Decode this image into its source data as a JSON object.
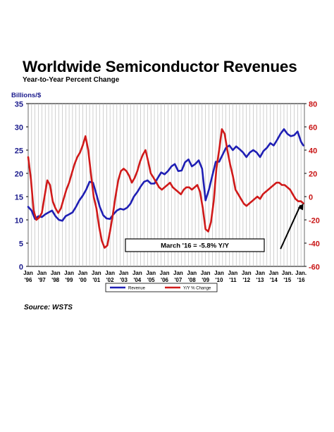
{
  "header": {
    "title": "Worldwide Semiconductor Revenues",
    "subtitle": "Year-to-Year Percent Change"
  },
  "footer": {
    "source": "Source: WSTS"
  },
  "chart_data": {
    "type": "line",
    "y_left_label": "Billions/$",
    "y_left_range": [
      0,
      35
    ],
    "y_left_ticks": [
      "0",
      "5",
      "10",
      "15",
      "20",
      "25",
      "30",
      "35"
    ],
    "y_right_range": [
      -60,
      80
    ],
    "y_right_ticks": [
      "-60",
      "-40",
      "-20",
      "0",
      "20",
      "40",
      "60",
      "80"
    ],
    "x_range": [
      1996,
      2016.25
    ],
    "x_ticks": [
      {
        "x": 1996,
        "top": "Jan",
        "bottom": "'96"
      },
      {
        "x": 1997,
        "top": "Jan",
        "bottom": "'97"
      },
      {
        "x": 1998,
        "top": "Jan",
        "bottom": "'98"
      },
      {
        "x": 1999,
        "top": "Jan",
        "bottom": "'99"
      },
      {
        "x": 2000,
        "top": "Jan",
        "bottom": "'00"
      },
      {
        "x": 2001,
        "top": "Jan",
        "bottom": "'01"
      },
      {
        "x": 2002,
        "top": "Jan",
        "bottom": "'02"
      },
      {
        "x": 2003,
        "top": "Jan",
        "bottom": "'03"
      },
      {
        "x": 2004,
        "top": "Jan",
        "bottom": "'04"
      },
      {
        "x": 2005,
        "top": "Jan",
        "bottom": "'05"
      },
      {
        "x": 2006,
        "top": "Jan",
        "bottom": "'06"
      },
      {
        "x": 2007,
        "top": "Jan",
        "bottom": "'07"
      },
      {
        "x": 2008,
        "top": "Jan",
        "bottom": "'08"
      },
      {
        "x": 2009,
        "top": "Jan",
        "bottom": "'09"
      },
      {
        "x": 2010,
        "top": "Jan",
        "bottom": "'10"
      },
      {
        "x": 2011,
        "top": "Jan",
        "bottom": "'11"
      },
      {
        "x": 2012,
        "top": "Jan",
        "bottom": "'12"
      },
      {
        "x": 2013,
        "top": "Jan",
        "bottom": "'13"
      },
      {
        "x": 2014,
        "top": "Jan",
        "bottom": "'14"
      },
      {
        "x": 2015,
        "top": "Jan.",
        "bottom": "'15"
      },
      {
        "x": 2016,
        "top": "Jan.",
        "bottom": "'16"
      }
    ],
    "grid": "vertical",
    "legend_position": "bottom",
    "series": [
      {
        "name": "Revenue",
        "axis": "left",
        "color": "#1f1fb4",
        "points": [
          [
            1996.0,
            12.8
          ],
          [
            1996.25,
            12.0
          ],
          [
            1996.5,
            10.2
          ],
          [
            1996.75,
            10.8
          ],
          [
            1997.0,
            10.6
          ],
          [
            1997.25,
            11.2
          ],
          [
            1997.5,
            11.6
          ],
          [
            1997.75,
            12.0
          ],
          [
            1998.0,
            10.8
          ],
          [
            1998.25,
            10.0
          ],
          [
            1998.5,
            9.8
          ],
          [
            1998.75,
            10.8
          ],
          [
            1999.0,
            11.2
          ],
          [
            1999.25,
            11.6
          ],
          [
            1999.5,
            12.8
          ],
          [
            1999.75,
            14.2
          ],
          [
            2000.0,
            15.2
          ],
          [
            2000.25,
            16.5
          ],
          [
            2000.5,
            18.2
          ],
          [
            2000.75,
            18.0
          ],
          [
            2001.0,
            15.5
          ],
          [
            2001.25,
            12.8
          ],
          [
            2001.5,
            11.0
          ],
          [
            2001.75,
            10.3
          ],
          [
            2002.0,
            10.2
          ],
          [
            2002.25,
            11.2
          ],
          [
            2002.5,
            12.0
          ],
          [
            2002.75,
            12.4
          ],
          [
            2003.0,
            12.2
          ],
          [
            2003.25,
            12.6
          ],
          [
            2003.5,
            13.5
          ],
          [
            2003.75,
            15.0
          ],
          [
            2004.0,
            16.0
          ],
          [
            2004.25,
            17.2
          ],
          [
            2004.5,
            18.2
          ],
          [
            2004.75,
            18.5
          ],
          [
            2005.0,
            17.8
          ],
          [
            2005.25,
            17.8
          ],
          [
            2005.5,
            19.0
          ],
          [
            2005.75,
            20.2
          ],
          [
            2006.0,
            19.8
          ],
          [
            2006.25,
            20.5
          ],
          [
            2006.5,
            21.5
          ],
          [
            2006.75,
            22.0
          ],
          [
            2007.0,
            20.5
          ],
          [
            2007.25,
            20.6
          ],
          [
            2007.5,
            22.4
          ],
          [
            2007.75,
            23.0
          ],
          [
            2008.0,
            21.5
          ],
          [
            2008.25,
            22.0
          ],
          [
            2008.5,
            22.8
          ],
          [
            2008.75,
            21.0
          ],
          [
            2009.0,
            14.2
          ],
          [
            2009.25,
            16.5
          ],
          [
            2009.5,
            19.5
          ],
          [
            2009.75,
            22.5
          ],
          [
            2010.0,
            22.5
          ],
          [
            2010.25,
            24.0
          ],
          [
            2010.5,
            25.5
          ],
          [
            2010.75,
            26.0
          ],
          [
            2011.0,
            25.0
          ],
          [
            2011.25,
            25.8
          ],
          [
            2011.5,
            25.2
          ],
          [
            2011.75,
            24.5
          ],
          [
            2012.0,
            23.5
          ],
          [
            2012.25,
            24.5
          ],
          [
            2012.5,
            25.0
          ],
          [
            2012.75,
            24.5
          ],
          [
            2013.0,
            23.5
          ],
          [
            2013.25,
            24.8
          ],
          [
            2013.5,
            25.5
          ],
          [
            2013.75,
            26.5
          ],
          [
            2014.0,
            26.0
          ],
          [
            2014.25,
            27.2
          ],
          [
            2014.5,
            28.5
          ],
          [
            2014.75,
            29.5
          ],
          [
            2015.0,
            28.5
          ],
          [
            2015.25,
            28.0
          ],
          [
            2015.5,
            28.2
          ],
          [
            2015.75,
            29.0
          ],
          [
            2016.0,
            26.8
          ],
          [
            2016.17,
            26.0
          ]
        ]
      },
      {
        "name": "Y/Y % Change",
        "axis": "right",
        "color": "#d01a1a",
        "points": [
          [
            1996.0,
            34
          ],
          [
            1996.2,
            15
          ],
          [
            1996.4,
            -12
          ],
          [
            1996.6,
            -20
          ],
          [
            1996.8,
            -18
          ],
          [
            1997.0,
            -14
          ],
          [
            1997.2,
            0
          ],
          [
            1997.4,
            14
          ],
          [
            1997.6,
            10
          ],
          [
            1997.8,
            -4
          ],
          [
            1998.0,
            -10
          ],
          [
            1998.2,
            -14
          ],
          [
            1998.4,
            -10
          ],
          [
            1998.6,
            -2
          ],
          [
            1998.8,
            6
          ],
          [
            1999.0,
            12
          ],
          [
            1999.2,
            20
          ],
          [
            1999.4,
            28
          ],
          [
            1999.6,
            34
          ],
          [
            1999.8,
            38
          ],
          [
            2000.0,
            44
          ],
          [
            2000.2,
            52
          ],
          [
            2000.4,
            40
          ],
          [
            2000.6,
            20
          ],
          [
            2000.8,
            0
          ],
          [
            2001.0,
            -10
          ],
          [
            2001.2,
            -26
          ],
          [
            2001.4,
            -38
          ],
          [
            2001.6,
            -44
          ],
          [
            2001.8,
            -42
          ],
          [
            2002.0,
            -30
          ],
          [
            2002.2,
            -16
          ],
          [
            2002.4,
            0
          ],
          [
            2002.6,
            14
          ],
          [
            2002.8,
            22
          ],
          [
            2003.0,
            24
          ],
          [
            2003.2,
            22
          ],
          [
            2003.4,
            18
          ],
          [
            2003.6,
            12
          ],
          [
            2003.8,
            16
          ],
          [
            2004.0,
            22
          ],
          [
            2004.2,
            30
          ],
          [
            2004.4,
            36
          ],
          [
            2004.6,
            40
          ],
          [
            2004.8,
            30
          ],
          [
            2004.99,
            20
          ],
          [
            2005.2,
            16
          ],
          [
            2005.4,
            12
          ],
          [
            2005.6,
            8
          ],
          [
            2005.8,
            6
          ],
          [
            2006.0,
            8
          ],
          [
            2006.2,
            10
          ],
          [
            2006.4,
            12
          ],
          [
            2006.6,
            8
          ],
          [
            2006.8,
            6
          ],
          [
            2007.0,
            4
          ],
          [
            2007.2,
            2
          ],
          [
            2007.4,
            6
          ],
          [
            2007.6,
            8
          ],
          [
            2007.8,
            8
          ],
          [
            2008.0,
            6
          ],
          [
            2008.2,
            8
          ],
          [
            2008.4,
            10
          ],
          [
            2008.6,
            4
          ],
          [
            2008.8,
            -10
          ],
          [
            2009.0,
            -28
          ],
          [
            2009.2,
            -30
          ],
          [
            2009.4,
            -22
          ],
          [
            2009.6,
            -4
          ],
          [
            2009.8,
            24
          ],
          [
            2010.0,
            40
          ],
          [
            2010.2,
            58
          ],
          [
            2010.4,
            54
          ],
          [
            2010.6,
            40
          ],
          [
            2010.8,
            28
          ],
          [
            2011.0,
            18
          ],
          [
            2011.2,
            6
          ],
          [
            2011.4,
            2
          ],
          [
            2011.6,
            -2
          ],
          [
            2011.8,
            -6
          ],
          [
            2012.0,
            -8
          ],
          [
            2012.2,
            -6
          ],
          [
            2012.4,
            -4
          ],
          [
            2012.6,
            -2
          ],
          [
            2012.8,
            0
          ],
          [
            2013.0,
            -2
          ],
          [
            2013.2,
            2
          ],
          [
            2013.4,
            4
          ],
          [
            2013.6,
            6
          ],
          [
            2013.8,
            8
          ],
          [
            2014.0,
            10
          ],
          [
            2014.2,
            12
          ],
          [
            2014.4,
            12
          ],
          [
            2014.6,
            10
          ],
          [
            2014.8,
            10
          ],
          [
            2015.0,
            8
          ],
          [
            2015.2,
            6
          ],
          [
            2015.4,
            2
          ],
          [
            2015.6,
            -2
          ],
          [
            2015.8,
            -4
          ],
          [
            2016.0,
            -4
          ],
          [
            2016.17,
            -5.8
          ]
        ]
      }
    ],
    "annotation": {
      "text": "March '16 = -5.8% Y/Y",
      "arrow_from": [
        2014.5,
        -45
      ],
      "arrow_to": [
        2016.17,
        -5.8
      ]
    }
  }
}
